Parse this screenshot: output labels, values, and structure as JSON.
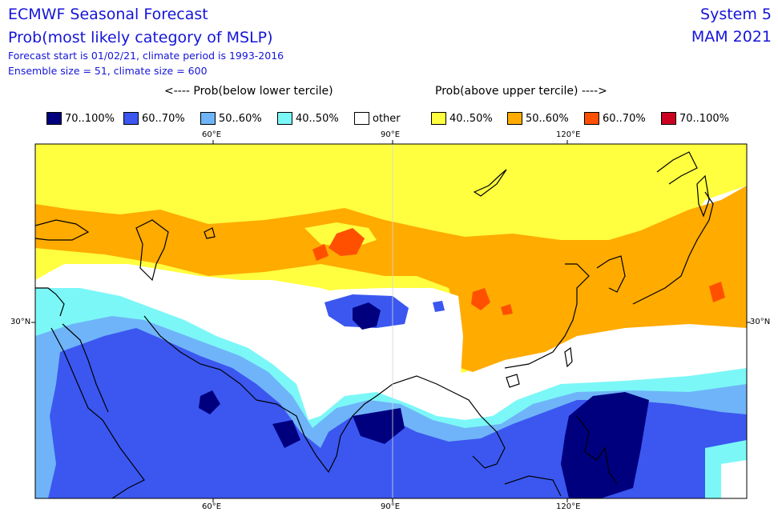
{
  "header": {
    "title": "ECMWF Seasonal Forecast",
    "subtitle": "Prob(most likely category of MSLP)",
    "line3": "Forecast start is 01/02/21, climate period is 1993-2016",
    "line4": "Ensemble size = 51, climate size = 600",
    "system": "System 5",
    "season": "MAM 2021"
  },
  "legend": {
    "below_label": "<---- Prob(below lower tercile)",
    "above_label": "Prob(above upper tercile) ---->",
    "items": [
      {
        "label": "70..100%",
        "color": "#00007f"
      },
      {
        "label": "60..70%",
        "color": "#3b57f0"
      },
      {
        "label": "50..60%",
        "color": "#6fb4f8"
      },
      {
        "label": "40..50%",
        "color": "#7cf7f7"
      },
      {
        "label": "other",
        "color": "#ffffff"
      },
      {
        "label": "40..50%",
        "color": "#ffff40"
      },
      {
        "label": "50..60%",
        "color": "#ffab00"
      },
      {
        "label": "60..70%",
        "color": "#ff5000"
      },
      {
        "label": "70..100%",
        "color": "#cc0020"
      }
    ]
  },
  "axes": {
    "top": [
      "60°E",
      "90°E",
      "120°E"
    ],
    "bottom": [
      "60°E",
      "90°E",
      "120°E"
    ],
    "left": "30°N",
    "right": "30°N"
  }
}
